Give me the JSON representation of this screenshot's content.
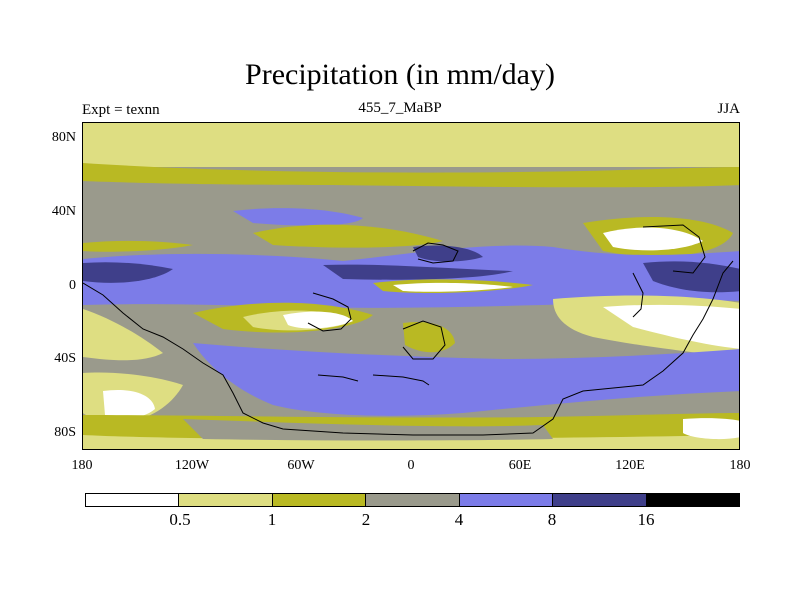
{
  "title": "Precipitation (in mm/day)",
  "expt": "Expt = texnn",
  "subtitle": "455_7_MaBP",
  "season": "JJA",
  "y_ticks": [
    "80N",
    "40N",
    "0",
    "40S",
    "80S"
  ],
  "x_ticks": [
    "180",
    "120W",
    "60W",
    "0",
    "60E",
    "120E",
    "180"
  ],
  "legend": {
    "colors": [
      "#ffffff",
      "#dede82",
      "#b9b923",
      "#9a9a8c",
      "#7c7ce8",
      "#3f3f8a",
      "#000000"
    ],
    "labels": [
      "0.5",
      "1",
      "2",
      "4",
      "8",
      "16"
    ]
  }
}
